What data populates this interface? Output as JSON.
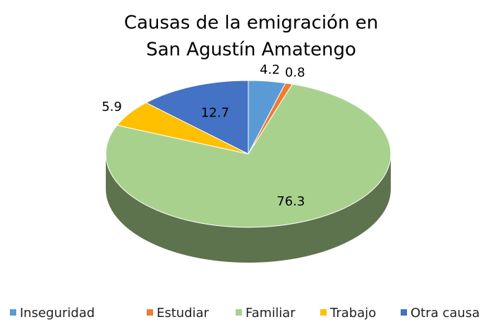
{
  "chart_data": {
    "type": "pie3d",
    "title": [
      "Causas de la emigración en",
      "San Agustín Amatengo"
    ],
    "categories": [
      "Inseguridad",
      "Estudiar",
      "Familiar",
      "Trabajo",
      "Otra causa"
    ],
    "values": [
      4.2,
      0.8,
      76.3,
      5.9,
      12.7
    ],
    "colors": [
      "#5b9bd5",
      "#ed7d31",
      "#a9d18e",
      "#ffc000",
      "#4472c4"
    ],
    "legend": "bottom"
  }
}
